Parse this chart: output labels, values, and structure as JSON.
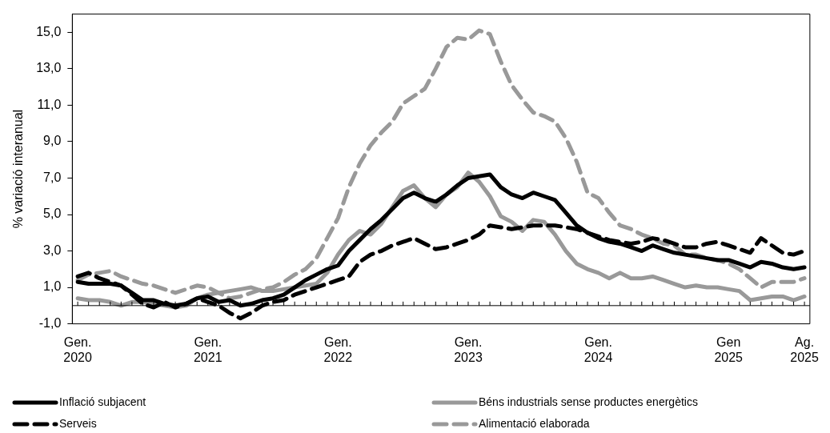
{
  "chart_data": {
    "type": "line",
    "ylabel": "% variació interanual",
    "categories": [
      "Gen. 2020",
      null,
      null,
      null,
      null,
      null,
      null,
      null,
      null,
      null,
      null,
      null,
      "Gen. 2021",
      null,
      null,
      null,
      null,
      null,
      null,
      null,
      null,
      null,
      null,
      null,
      "Gen. 2022",
      null,
      null,
      null,
      null,
      null,
      null,
      null,
      null,
      null,
      null,
      null,
      "Gen. 2023",
      null,
      null,
      null,
      null,
      null,
      null,
      null,
      null,
      null,
      null,
      null,
      "Gen. 2024",
      null,
      null,
      null,
      null,
      null,
      null,
      null,
      null,
      null,
      null,
      null,
      "Gen 2025",
      null,
      null,
      null,
      null,
      null,
      null,
      "Ag. 2025"
    ],
    "series": [
      {
        "name": "Inflació subjacent",
        "color": "#000000",
        "line_style": "solid",
        "values": [
          1.3,
          1.2,
          1.2,
          1.2,
          1.1,
          0.7,
          0.3,
          0.3,
          0.1,
          0.0,
          0.1,
          0.4,
          0.5,
          0.2,
          0.3,
          0.0,
          0.1,
          0.3,
          0.4,
          0.6,
          1.0,
          1.4,
          1.7,
          2.0,
          2.2,
          3.0,
          3.6,
          4.2,
          4.7,
          5.3,
          5.9,
          6.2,
          5.9,
          5.7,
          6.1,
          6.6,
          7.0,
          7.1,
          7.2,
          6.5,
          6.1,
          5.9,
          6.2,
          6.0,
          5.8,
          5.1,
          4.4,
          4.0,
          3.7,
          3.5,
          3.4,
          3.2,
          3.0,
          3.3,
          3.1,
          2.9,
          2.8,
          2.7,
          2.6,
          2.5,
          2.5,
          2.3,
          2.1,
          2.4,
          2.3,
          2.1,
          2.0,
          2.1
        ]
      },
      {
        "name": "Serveis",
        "color": "#000000",
        "line_style": "dashed",
        "values": [
          1.6,
          1.8,
          1.5,
          1.3,
          1.1,
          0.6,
          0.1,
          -0.1,
          0.2,
          -0.1,
          0.1,
          0.4,
          0.2,
          0.0,
          -0.4,
          -0.7,
          -0.4,
          0.0,
          0.2,
          0.3,
          0.6,
          0.8,
          1.0,
          1.2,
          1.4,
          1.6,
          2.4,
          2.8,
          3.0,
          3.3,
          3.5,
          3.7,
          3.4,
          3.1,
          3.2,
          3.4,
          3.6,
          3.9,
          4.4,
          4.3,
          4.2,
          4.3,
          4.4,
          4.4,
          4.4,
          4.3,
          4.2,
          4.0,
          3.8,
          3.6,
          3.5,
          3.4,
          3.5,
          3.7,
          3.6,
          3.4,
          3.2,
          3.2,
          3.4,
          3.5,
          3.3,
          3.1,
          2.9,
          3.7,
          3.3,
          2.9,
          2.8,
          3.0
        ]
      },
      {
        "name": "Béns industrials sense productes energètics",
        "color": "#999999",
        "line_style": "solid",
        "values": [
          0.4,
          0.3,
          0.3,
          0.2,
          0.0,
          0.2,
          0.2,
          0.1,
          0.0,
          -0.1,
          0.0,
          0.4,
          0.6,
          0.7,
          0.8,
          0.9,
          1.0,
          0.8,
          0.8,
          0.9,
          1.0,
          1.1,
          1.2,
          1.8,
          2.8,
          3.6,
          4.1,
          3.9,
          4.5,
          5.4,
          6.3,
          6.6,
          5.9,
          5.4,
          6.1,
          6.5,
          7.3,
          6.8,
          6.0,
          4.9,
          4.6,
          4.1,
          4.7,
          4.6,
          3.9,
          3.0,
          2.3,
          2.0,
          1.8,
          1.5,
          1.8,
          1.5,
          1.5,
          1.6,
          1.4,
          1.2,
          1.0,
          1.1,
          1.0,
          1.0,
          0.9,
          0.8,
          0.3,
          0.4,
          0.5,
          0.5,
          0.3,
          0.5
        ]
      },
      {
        "name": "Alimentació elaborada",
        "color": "#999999",
        "line_style": "dashed",
        "values": [
          1.4,
          1.7,
          1.8,
          1.9,
          1.6,
          1.4,
          1.2,
          1.1,
          0.9,
          0.7,
          0.9,
          1.1,
          1.0,
          0.7,
          0.4,
          0.5,
          0.7,
          0.9,
          1.0,
          1.3,
          1.7,
          2.0,
          2.6,
          3.7,
          4.8,
          6.5,
          7.8,
          8.8,
          9.5,
          10.1,
          11.1,
          11.5,
          11.9,
          13.0,
          14.2,
          14.7,
          14.6,
          15.1,
          14.9,
          13.4,
          12.1,
          11.3,
          10.6,
          10.4,
          10.1,
          9.2,
          7.9,
          6.2,
          5.9,
          5.1,
          4.4,
          4.2,
          3.9,
          3.7,
          3.4,
          3.3,
          2.8,
          2.8,
          2.6,
          2.5,
          2.3,
          2.0,
          1.5,
          1.0,
          1.3,
          1.3,
          1.3,
          1.5
        ]
      }
    ],
    "ylim": [
      -1,
      16
    ],
    "yticks": [
      {
        "value": -1,
        "label": "-1,0"
      },
      {
        "value": 1,
        "label": "1,0"
      },
      {
        "value": 3,
        "label": "3,0"
      },
      {
        "value": 5,
        "label": "5,0"
      },
      {
        "value": 7,
        "label": "7,0"
      },
      {
        "value": 9,
        "label": "9,0"
      },
      {
        "value": 11,
        "label": "11,0"
      },
      {
        "value": 13,
        "label": "13,0"
      },
      {
        "value": 15,
        "label": "15,0"
      }
    ],
    "ref_lines": [
      {
        "axis": "y",
        "value": 0,
        "color": "#000000"
      }
    ],
    "grid": false,
    "legend": "bottom",
    "marker": "none"
  }
}
